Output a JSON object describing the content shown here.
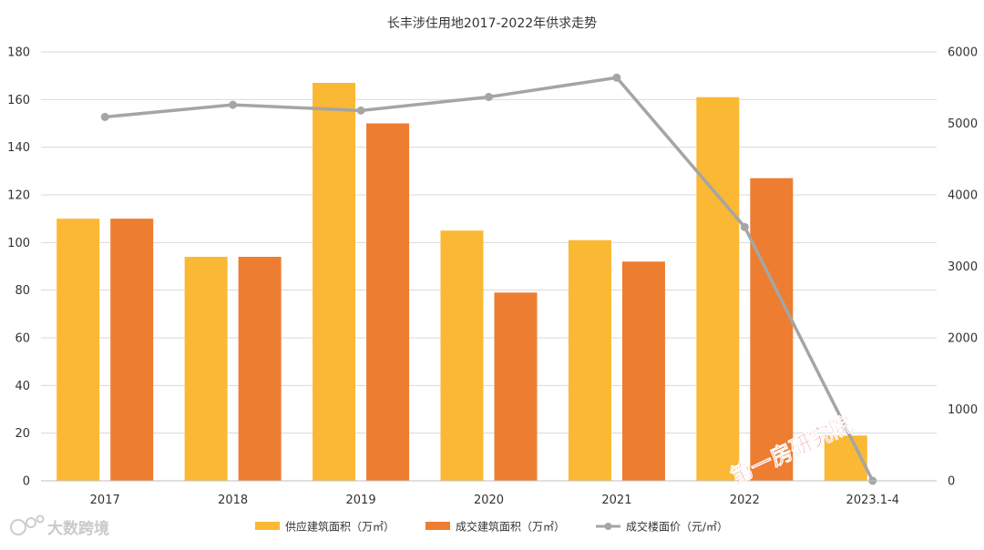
{
  "chart_data": {
    "type": "bar",
    "title": "长丰涉住用地2017-2022年供求走势",
    "categories": [
      "2017",
      "2018",
      "2019",
      "2020",
      "2021",
      "2022",
      "2023.1-4"
    ],
    "series": [
      {
        "name": "供应建筑面积（万㎡）",
        "kind": "bar",
        "axis": "left",
        "color": "#FBB834",
        "values": [
          110,
          94,
          167,
          105,
          101,
          161,
          19
        ]
      },
      {
        "name": "成交建筑面积（万㎡）",
        "kind": "bar",
        "axis": "left",
        "color": "#ED7D31",
        "values": [
          110,
          94,
          150,
          79,
          92,
          127,
          null
        ]
      },
      {
        "name": "成交楼面价（元/㎡）",
        "kind": "line",
        "axis": "right",
        "color": "#A5A5A5",
        "values": [
          5090,
          5260,
          5180,
          5370,
          5640,
          3550,
          0
        ]
      }
    ],
    "y_left": {
      "min": 0,
      "max": 180,
      "ticks": [
        0,
        20,
        40,
        60,
        80,
        100,
        120,
        140,
        160,
        180
      ]
    },
    "y_right": {
      "min": 0,
      "max": 6000,
      "ticks": [
        0,
        1000,
        2000,
        3000,
        4000,
        5000,
        6000
      ]
    },
    "grid": true,
    "legend_position": "bottom"
  },
  "watermarks": {
    "red_stamp": "第一房研究院",
    "brand": "大数跨境"
  }
}
